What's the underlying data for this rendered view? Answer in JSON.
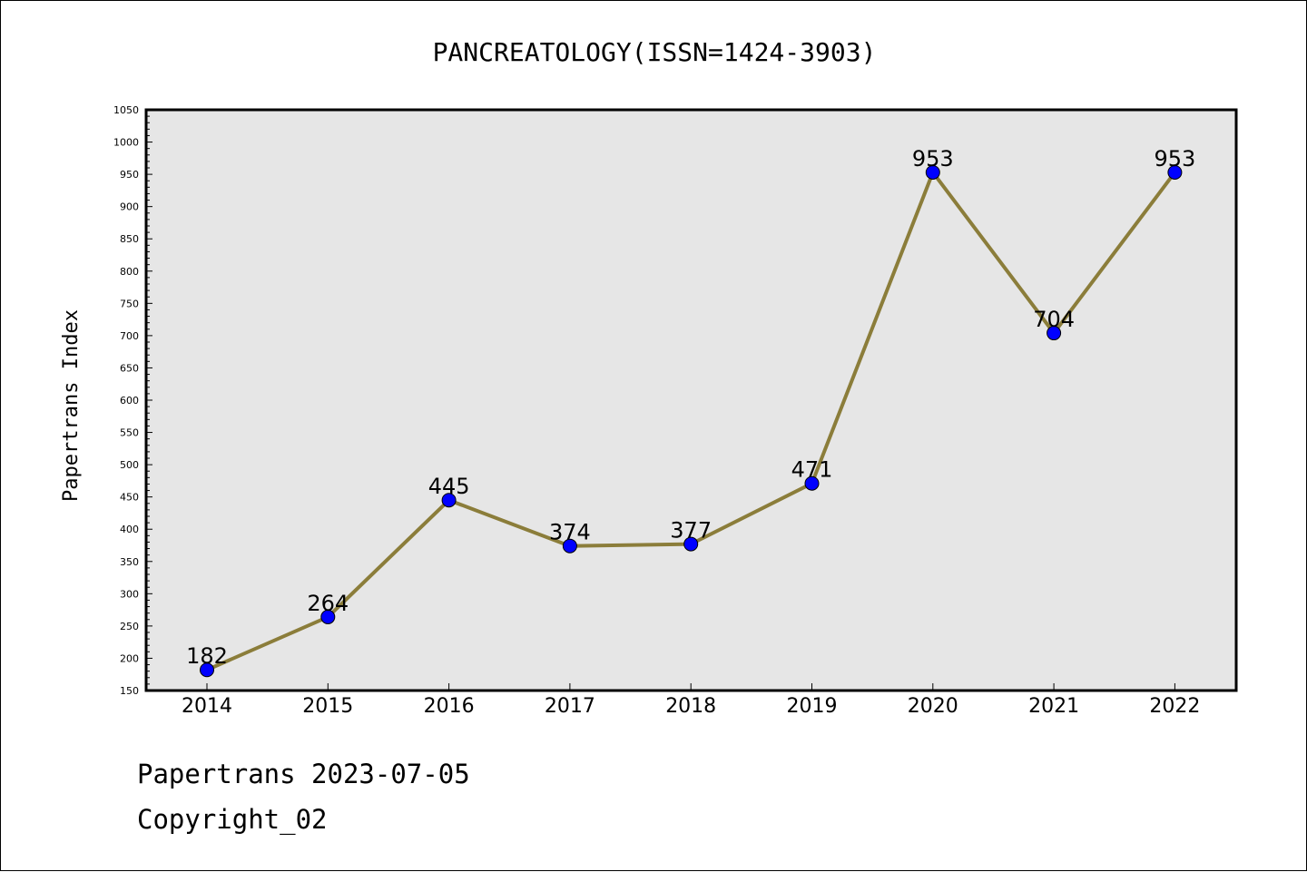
{
  "colors": {
    "plot_background": "#e6e6e6",
    "line": "#8b7d3a",
    "marker": "#0000ff",
    "axis": "#000000"
  },
  "chart_data": {
    "type": "line",
    "title": "PANCREATOLOGY(ISSN=1424-3903)",
    "xlabel": "",
    "ylabel": "Papertrans Index",
    "categories": [
      "2014",
      "2015",
      "2016",
      "2017",
      "2018",
      "2019",
      "2020",
      "2021",
      "2022"
    ],
    "series": [
      {
        "values": [
          182,
          264,
          445,
          374,
          377,
          471,
          953,
          704,
          953
        ]
      }
    ],
    "ylim": [
      150,
      1050
    ],
    "yticks": [
      150,
      200,
      250,
      300,
      350,
      400,
      450,
      500,
      550,
      600,
      650,
      700,
      750,
      800,
      850,
      900,
      950,
      1000,
      1050
    ],
    "grid": false,
    "legend": "none"
  },
  "footer": {
    "line1": "Papertrans 2023-07-05",
    "line2": "Copyright_02"
  }
}
